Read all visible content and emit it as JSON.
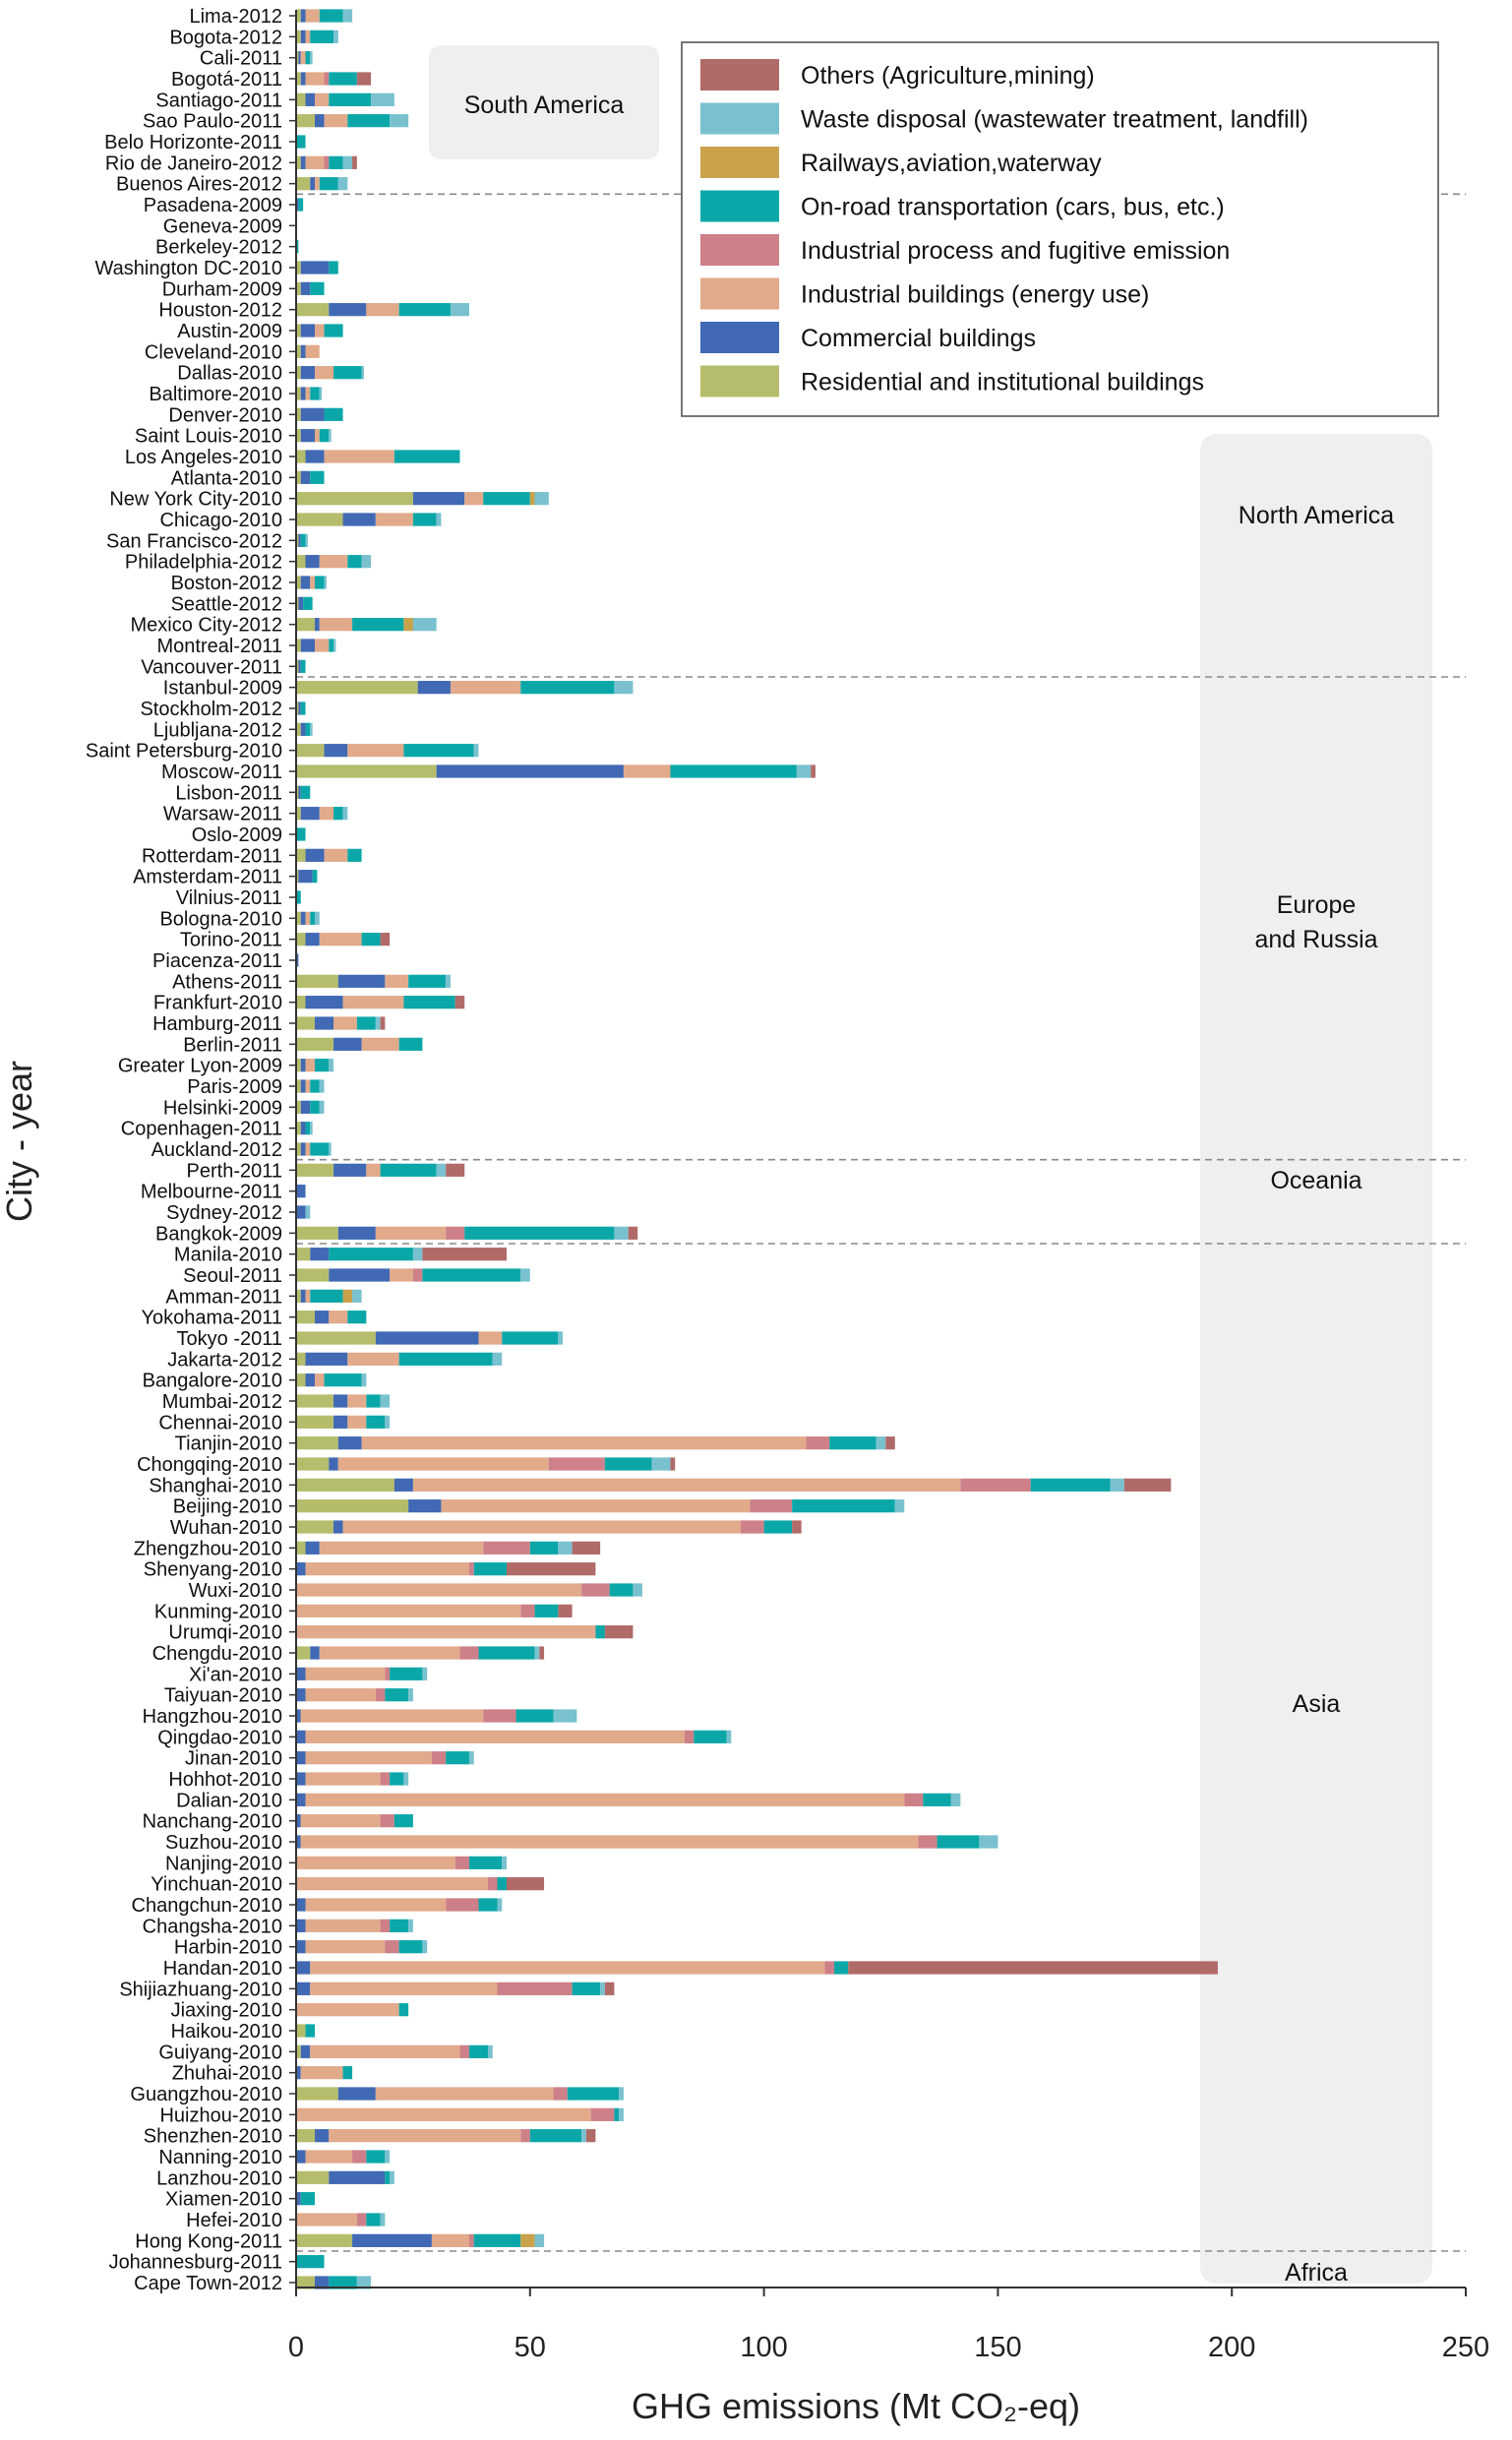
{
  "chart_data": {
    "type": "bar",
    "orientation": "horizontal",
    "stacked": true,
    "xlabel": "GHG emissions (Mt CO₂-eq)",
    "ylabel": "City - year",
    "xlim": [
      0,
      250
    ],
    "xticks": [
      0,
      50,
      100,
      150,
      200,
      250
    ],
    "grid": false,
    "legend_position": "top-right",
    "series": [
      {
        "key": "res",
        "name": "Residential and institutional buildings",
        "color": "#b5bd6c"
      },
      {
        "key": "com",
        "name": "Commercial buildings",
        "color": "#4169b4"
      },
      {
        "key": "ind",
        "name": "Industrial buildings (energy use)",
        "color": "#e1aa8a"
      },
      {
        "key": "proc",
        "name": "Industrial process and fugitive emission",
        "color": "#cd8088"
      },
      {
        "key": "road",
        "name": "On-road transportation (cars, bus, etc.)",
        "color": "#0ba7a8"
      },
      {
        "key": "rail",
        "name": "Railways,aviation,waterway",
        "color": "#c9a24b"
      },
      {
        "key": "waste",
        "name": "Waste disposal (wastewater treatment, landfill)",
        "color": "#79c1cf"
      },
      {
        "key": "oth",
        "name": "Others (Agriculture,mining)",
        "color": "#b06a68"
      }
    ],
    "legend_order": [
      "oth",
      "waste",
      "rail",
      "road",
      "proc",
      "ind",
      "com",
      "res"
    ],
    "regions": [
      {
        "name": "South America",
        "from": 0,
        "to": 8
      },
      {
        "name": "North America",
        "from": 9,
        "to": 31
      },
      {
        "name": "Europe and Russia",
        "from": 32,
        "to": 54
      },
      {
        "name": "Oceania",
        "from": 55,
        "to": 58
      },
      {
        "name": "Asia",
        "from": 59,
        "to": 106
      },
      {
        "name": "Africa",
        "from": 107,
        "to": 108
      }
    ],
    "categories": [
      "Lima-2012",
      "Bogota-2012",
      "Cali-2011",
      "Bogotá-2011",
      "Santiago-2011",
      "Sao Paulo-2011",
      "Belo Horizonte-2011",
      "Rio de Janeiro-2012",
      "Buenos Aires-2012",
      "Pasadena-2009",
      "Geneva-2009",
      "Berkeley-2012",
      "Washington DC-2010",
      "Durham-2009",
      "Houston-2012",
      "Austin-2009",
      "Cleveland-2010",
      "Dallas-2010",
      "Baltimore-2010",
      "Denver-2010",
      "Saint Louis-2010",
      "Los Angeles-2010",
      "Atlanta-2010",
      "New York City-2010",
      "Chicago-2010",
      "San Francisco-2012",
      "Philadelphia-2012",
      "Boston-2012",
      "Seattle-2012",
      "Mexico City-2012",
      "Montreal-2011",
      "Vancouver-2011",
      "Istanbul-2009",
      "Stockholm-2012",
      "Ljubljana-2012",
      "Saint Petersburg-2010",
      "Moscow-2011",
      "Lisbon-2011",
      "Warsaw-2011",
      "Oslo-2009",
      "Rotterdam-2011",
      "Amsterdam-2011",
      "Vilnius-2011",
      "Bologna-2010",
      "Torino-2011",
      "Piacenza-2011",
      "Athens-2011",
      "Frankfurt-2010",
      "Hamburg-2011",
      "Berlin-2011",
      "Greater Lyon-2009",
      "Paris-2009",
      "Helsinki-2009",
      "Copenhagen-2011",
      "Auckland-2012",
      "Perth-2011",
      "Melbourne-2011",
      "Sydney-2012",
      "Bangkok-2009",
      "Manila-2010",
      "Seoul-2011",
      "Amman-2011",
      "Yokohama-2011",
      "Tokyo -2011",
      "Jakarta-2012",
      "Bangalore-2010",
      "Mumbai-2012",
      "Chennai-2010",
      "Tianjin-2010",
      "Chongqing-2010",
      "Shanghai-2010",
      "Beijing-2010",
      "Wuhan-2010",
      "Zhengzhou-2010",
      "Shenyang-2010",
      "Wuxi-2010",
      "Kunming-2010",
      "Urumqi-2010",
      "Chengdu-2010",
      "Xi'an-2010",
      "Taiyuan-2010",
      "Hangzhou-2010",
      "Qingdao-2010",
      "Jinan-2010",
      "Hohhot-2010",
      "Dalian-2010",
      "Nanchang-2010",
      "Suzhou-2010",
      "Nanjing-2010",
      "Yinchuan-2010",
      "Changchun-2010",
      "Changsha-2010",
      "Harbin-2010",
      "Handan-2010",
      "Shijiazhuang-2010",
      "Jiaxing-2010",
      "Haikou-2010",
      "Guiyang-2010",
      "Zhuhai-2010",
      "Guangzhou-2010",
      "Huizhou-2010",
      "Shenzhen-2010",
      "Nanning-2010",
      "Lanzhou-2010",
      "Xiamen-2010",
      "Hefei-2010",
      "Hong Kong-2011",
      "Johannesburg-2011",
      "Cape Town-2012"
    ],
    "values": {
      "res": [
        1,
        1,
        0.5,
        1,
        2,
        4,
        0,
        1,
        3,
        0,
        0,
        0,
        1,
        1,
        7,
        1,
        1,
        1,
        1,
        1,
        1,
        2,
        1,
        25,
        10,
        0.5,
        2,
        1,
        0.5,
        4,
        1,
        0.5,
        26,
        0.5,
        1,
        6,
        30,
        0.5,
        1,
        0,
        2,
        0.5,
        0,
        1,
        2,
        0,
        9,
        2,
        4,
        8,
        1,
        1,
        1,
        1,
        1,
        8,
        0,
        0,
        9,
        3,
        7,
        1,
        4,
        17,
        2,
        2,
        8,
        8,
        9,
        7,
        21,
        24,
        8,
        2,
        0,
        0,
        0,
        0,
        3,
        0,
        0,
        0,
        0,
        0,
        0,
        0,
        0,
        0,
        0,
        0,
        0,
        0,
        0,
        0,
        0,
        0,
        2,
        1,
        0,
        9,
        0,
        4,
        0,
        7,
        0,
        0,
        12,
        0,
        4
      ],
      "com": [
        1,
        1,
        0.5,
        1,
        2,
        2,
        0,
        1,
        1,
        0.5,
        0,
        0,
        6,
        2,
        8,
        3,
        1,
        3,
        1,
        5,
        3,
        4,
        2,
        11,
        7,
        0.5,
        3,
        2,
        1,
        1,
        3,
        0.5,
        7,
        0.5,
        1,
        5,
        40,
        0.5,
        4,
        0,
        4,
        3,
        0,
        1,
        3,
        0.5,
        10,
        8,
        4,
        6,
        1,
        1,
        2,
        1,
        1,
        7,
        2,
        2,
        8,
        4,
        13,
        1,
        3,
        22,
        9,
        2,
        3,
        3,
        5,
        2,
        4,
        7,
        2,
        3,
        2,
        0,
        0,
        0,
        2,
        2,
        2,
        1,
        2,
        2,
        2,
        2,
        1,
        1,
        0,
        0,
        2,
        2,
        2,
        3,
        3,
        0,
        0,
        2,
        1,
        8,
        0,
        3,
        2,
        12,
        1,
        0,
        17,
        0,
        3
      ],
      "ind": [
        3,
        1,
        1,
        4,
        3,
        5,
        0,
        4,
        1,
        0,
        0,
        0,
        0,
        0,
        7,
        2,
        3,
        4,
        1,
        0,
        1,
        15,
        0,
        4,
        8,
        0,
        6,
        1,
        0,
        7,
        3,
        0,
        15,
        0,
        0,
        12,
        10,
        0,
        3,
        0,
        5,
        0,
        0,
        1,
        9,
        0,
        5,
        13,
        5,
        8,
        2,
        1,
        0,
        0,
        1,
        3,
        0,
        0,
        15,
        0,
        5,
        1,
        4,
        5,
        11,
        2,
        4,
        4,
        95,
        45,
        117,
        66,
        85,
        35,
        35,
        61,
        48,
        64,
        30,
        17,
        15,
        39,
        81,
        27,
        16,
        128,
        17,
        132,
        34,
        41,
        30,
        16,
        17,
        110,
        40,
        22,
        0,
        32,
        9,
        38,
        63,
        41,
        10,
        0,
        0,
        13,
        8,
        0,
        0
      ],
      "proc": [
        0,
        0,
        0,
        1,
        0,
        0,
        0,
        1,
        0,
        0,
        0,
        0,
        0,
        0,
        0,
        0,
        0,
        0,
        0,
        0,
        0,
        0,
        0,
        0,
        0,
        0,
        0,
        0,
        0,
        0,
        0,
        0,
        0,
        0,
        0,
        0,
        0,
        0,
        0,
        0,
        0,
        0,
        0,
        0,
        0,
        0,
        0,
        0,
        0,
        0,
        0,
        0,
        0,
        0,
        0,
        0,
        0,
        0,
        4,
        0,
        2,
        0,
        0,
        0,
        0,
        0,
        0,
        0,
        5,
        12,
        15,
        9,
        5,
        10,
        1,
        6,
        3,
        0,
        4,
        1,
        2,
        7,
        2,
        3,
        2,
        4,
        3,
        4,
        3,
        2,
        7,
        2,
        3,
        2,
        16,
        0,
        0,
        2,
        0,
        3,
        5,
        2,
        3,
        0,
        0,
        2,
        1,
        0,
        0
      ],
      "road": [
        5,
        5,
        1,
        6,
        9,
        9,
        2,
        3,
        4,
        1,
        0,
        0.5,
        2,
        3,
        11,
        4,
        0,
        6,
        2,
        4,
        2,
        14,
        3,
        10,
        5,
        1,
        3,
        2,
        2,
        11,
        1,
        1,
        20,
        1,
        1,
        15,
        27,
        2,
        2,
        2,
        3,
        1,
        1,
        1,
        4,
        0,
        8,
        11,
        4,
        5,
        3,
        2,
        2,
        1,
        4,
        12,
        0,
        0,
        32,
        18,
        21,
        7,
        4,
        12,
        20,
        8,
        3,
        4,
        10,
        10,
        17,
        22,
        6,
        6,
        7,
        5,
        5,
        2,
        12,
        7,
        5,
        8,
        7,
        5,
        3,
        6,
        4,
        9,
        7,
        2,
        4,
        4,
        5,
        3,
        6,
        2,
        2,
        4,
        2,
        11,
        1,
        11,
        4,
        1,
        3,
        3,
        10,
        6,
        6
      ],
      "rail": [
        0,
        0,
        0,
        0,
        0,
        0,
        0,
        0,
        0,
        0,
        0,
        0,
        0,
        0,
        0,
        0,
        0,
        0,
        0,
        0,
        0,
        0,
        0,
        1,
        0,
        0,
        0,
        0,
        0,
        2,
        0,
        0,
        0,
        0,
        0,
        0,
        0,
        0,
        0,
        0,
        0,
        0,
        0,
        0,
        0,
        0,
        0,
        0,
        0,
        0,
        0,
        0,
        0,
        0,
        0,
        0,
        0,
        0,
        0,
        0,
        0,
        2,
        0,
        0,
        0,
        0,
        0,
        0,
        0,
        0,
        0,
        0,
        0,
        0,
        0,
        0,
        0,
        0,
        0,
        0,
        0,
        0,
        0,
        0,
        0,
        0,
        0,
        0,
        0,
        0,
        0,
        0,
        0,
        0,
        0,
        0,
        0,
        0,
        0,
        0,
        0,
        0,
        0,
        0,
        0,
        0,
        3,
        0,
        0
      ],
      "waste": [
        2,
        1,
        0.5,
        0,
        5,
        4,
        0,
        2,
        2,
        0,
        0,
        0,
        0,
        0,
        4,
        0,
        0,
        0.5,
        0.5,
        0,
        0.5,
        0,
        0,
        3,
        1,
        0.5,
        2,
        0.5,
        0,
        5,
        0.5,
        0,
        4,
        0,
        0.5,
        1,
        3,
        0,
        1,
        0,
        0,
        0,
        0,
        1,
        0,
        0,
        1,
        0,
        1,
        0,
        1,
        1,
        1,
        0.5,
        0.5,
        2,
        0,
        1,
        3,
        2,
        2,
        2,
        0,
        1,
        2,
        1,
        2,
        1,
        2,
        4,
        3,
        2,
        0,
        3,
        0,
        2,
        0,
        0,
        1,
        1,
        1,
        5,
        1,
        1,
        1,
        2,
        0,
        4,
        1,
        0,
        1,
        1,
        1,
        0,
        1,
        0,
        0,
        1,
        0,
        1,
        1,
        1,
        1,
        1,
        0,
        1,
        2,
        0,
        3
      ],
      "oth": [
        0,
        0,
        0,
        3,
        0,
        0,
        0,
        1,
        0,
        0,
        0,
        0,
        0,
        0,
        0,
        0,
        0,
        0,
        0,
        0,
        0,
        0,
        0,
        0,
        0,
        0,
        0,
        0,
        0,
        0,
        0,
        0,
        0,
        0,
        0,
        0,
        1,
        0,
        0,
        0,
        0,
        0,
        0,
        0,
        2,
        0,
        0,
        2,
        1,
        0,
        0,
        0,
        0,
        0,
        0,
        4,
        0,
        0,
        2,
        18,
        0,
        0,
        0,
        0,
        0,
        0,
        0,
        0,
        2,
        1,
        10,
        0,
        2,
        6,
        19,
        0,
        3,
        6,
        1,
        0,
        0,
        0,
        0,
        0,
        0,
        0,
        0,
        0,
        0,
        8,
        0,
        0,
        0,
        79,
        2,
        0,
        0,
        0,
        0,
        0,
        0,
        2,
        0,
        0,
        0,
        0,
        0,
        0,
        0
      ]
    }
  }
}
